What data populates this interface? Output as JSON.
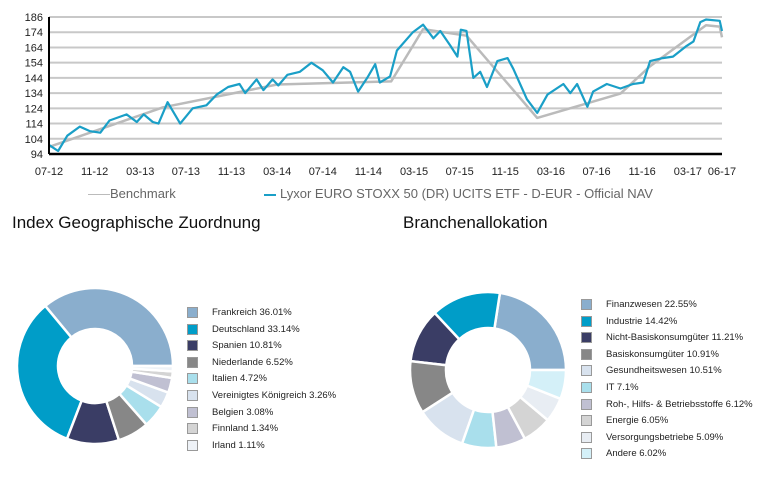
{
  "chart_data": [
    {
      "type": "line",
      "title": "",
      "y_ticks": [
        94,
        104,
        114,
        124,
        134,
        144,
        154,
        164,
        174,
        186
      ],
      "x_ticks": [
        "07-12",
        "11-12",
        "03-13",
        "07-13",
        "11-13",
        "03-14",
        "07-14",
        "11-14",
        "03-15",
        "07-15",
        "11-15",
        "03-16",
        "07-16",
        "11-16",
        "03-17",
        "06-17"
      ],
      "x_tick_months": [
        0,
        4,
        8,
        12,
        16,
        20,
        24,
        28,
        32,
        36,
        40,
        44,
        48,
        52,
        56,
        59
      ],
      "grid": true,
      "legend_position": "bottom",
      "series": [
        {
          "name": "Lyxor EURO STOXX 50 (DR) UCITS ETF - D-EUR - Official NAV",
          "color": "#1a9fc7",
          "points": [
            [
              0,
              100
            ],
            [
              0.8,
              96
            ],
            [
              1.6,
              106
            ],
            [
              2.7,
              112
            ],
            [
              3.6,
              109
            ],
            [
              4.5,
              108
            ],
            [
              5.3,
              116
            ],
            [
              6.8,
              120
            ],
            [
              7.7,
              115
            ],
            [
              8.3,
              120
            ],
            [
              9.1,
              115
            ],
            [
              9.6,
              114
            ],
            [
              10.4,
              128
            ],
            [
              11.5,
              114
            ],
            [
              12.6,
              124
            ],
            [
              13.8,
              126
            ],
            [
              14.7,
              133
            ],
            [
              15.7,
              138
            ],
            [
              16.7,
              140
            ],
            [
              17.2,
              134
            ],
            [
              18.2,
              143
            ],
            [
              18.8,
              136
            ],
            [
              19.6,
              143
            ],
            [
              20.1,
              139
            ],
            [
              20.9,
              146
            ],
            [
              22,
              148
            ],
            [
              23,
              154
            ],
            [
              24,
              149
            ],
            [
              24.9,
              141
            ],
            [
              25.8,
              151
            ],
            [
              26.4,
              148
            ],
            [
              27.1,
              135
            ],
            [
              27.9,
              144
            ],
            [
              28.6,
              153
            ],
            [
              29,
              141
            ],
            [
              29.9,
              145
            ],
            [
              30.5,
              162
            ],
            [
              31.9,
              174
            ],
            [
              32.8,
              180
            ],
            [
              33.7,
              170
            ],
            [
              34.3,
              175
            ],
            [
              35.2,
              165
            ],
            [
              35.8,
              158
            ],
            [
              36.1,
              176
            ],
            [
              36.6,
              175
            ],
            [
              37.2,
              144
            ],
            [
              37.8,
              148
            ],
            [
              38.4,
              138
            ],
            [
              39.3,
              155
            ],
            [
              40.2,
              157
            ],
            [
              40.7,
              150
            ],
            [
              41.3,
              140
            ],
            [
              41.9,
              130
            ],
            [
              42.8,
              121
            ],
            [
              43.7,
              133
            ],
            [
              44.5,
              137
            ],
            [
              45.1,
              140
            ],
            [
              45.7,
              134
            ],
            [
              46.3,
              140
            ],
            [
              47.2,
              125
            ],
            [
              47.7,
              135
            ],
            [
              48.9,
              140
            ],
            [
              50.1,
              137
            ],
            [
              51.2,
              140
            ],
            [
              52.1,
              141
            ],
            [
              52.7,
              155
            ],
            [
              53.8,
              157
            ],
            [
              54.7,
              158
            ],
            [
              55.9,
              165
            ],
            [
              56.5,
              168
            ],
            [
              57.1,
              182
            ],
            [
              57.6,
              184
            ],
            [
              58.8,
              183
            ],
            [
              59,
              175
            ]
          ]
        },
        {
          "name": "Benchmark",
          "color": "#bbbbbb",
          "points": [
            [
              0,
              100
            ],
            [
              10,
              126
            ],
            [
              20,
              141
            ],
            [
              30,
              143
            ],
            [
              32.8,
              178
            ],
            [
              36.6,
              173
            ],
            [
              42.8,
              119
            ],
            [
              50.1,
              135
            ],
            [
              52.7,
              153
            ],
            [
              57.6,
              181
            ],
            [
              58.8,
              180
            ],
            [
              59,
              172
            ]
          ]
        }
      ]
    },
    {
      "type": "pie",
      "title": "Index Geographische Zuordnung",
      "labels": [
        "Frankreich 36.01%",
        "Deutschland 33.14%",
        "Spanien 10.81%",
        "Niederlande 6.52%",
        "Italien 4.72%",
        "Vereinigtes Königreich 3.26%",
        "Belgien 3.08%",
        "Finnland 1.34%",
        "Irland 1.11%"
      ],
      "values": [
        36.01,
        33.14,
        10.81,
        6.52,
        4.72,
        3.26,
        3.08,
        1.34,
        1.11
      ],
      "colors": [
        "#8aaecd",
        "#009dc8",
        "#3a3d65",
        "#878787",
        "#a9dfec",
        "#d8e2ee",
        "#c0c0d2",
        "#d4d4d4",
        "#eef2f7"
      ]
    },
    {
      "type": "pie",
      "title": "Branchenallokation",
      "labels": [
        "Finanzwesen 22.55%",
        "Industrie 14.42%",
        "Nicht-Basiskonsumgüter 11.21%",
        "Basiskonsumgüter 10.91%",
        "Gesundheitswesen 10.51%",
        "IT 7.1%",
        "Roh-, Hilfs-  &  Betriebsstoffe 6.12%",
        "Energie 6.05%",
        "Versorgungsbetriebe 5.09%",
        "Andere 6.02%"
      ],
      "values": [
        22.55,
        14.42,
        11.21,
        10.91,
        10.51,
        7.1,
        6.12,
        6.05,
        5.09,
        6.02
      ],
      "colors": [
        "#8aaecd",
        "#009dc8",
        "#3a3d65",
        "#878787",
        "#d8e2ee",
        "#a9dfec",
        "#c0c0d2",
        "#d4d4d4",
        "#e8edf3",
        "#d4f0f8"
      ]
    }
  ]
}
